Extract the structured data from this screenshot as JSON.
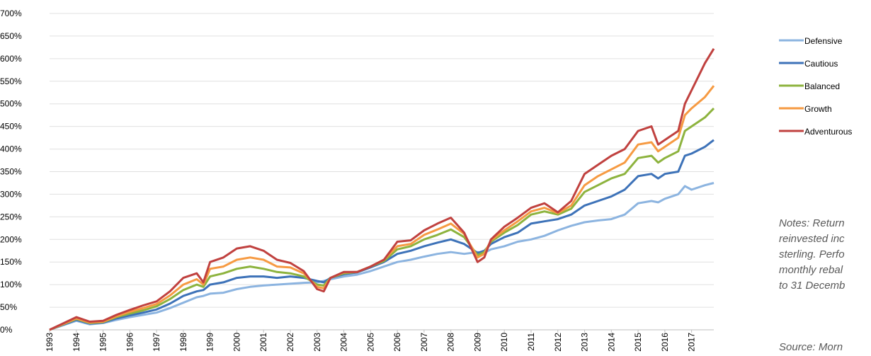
{
  "chart_data": {
    "type": "line",
    "x": [
      1993,
      1994,
      1994.5,
      1995,
      1995.5,
      1996,
      1996.5,
      1997,
      1997.5,
      1998,
      1998.5,
      1998.75,
      1999,
      1999.5,
      2000,
      2000.5,
      2001,
      2001.5,
      2002,
      2002.5,
      2003,
      2003.25,
      2003.5,
      2004,
      2004.5,
      2005,
      2005.5,
      2006,
      2006.5,
      2007,
      2007.5,
      2008,
      2008.5,
      2009,
      2009.25,
      2009.5,
      2010,
      2010.5,
      2011,
      2011.5,
      2012,
      2012.5,
      2013,
      2013.5,
      2014,
      2014.5,
      2015,
      2015.5,
      2015.75,
      2016,
      2016.5,
      2016.75,
      2017,
      2017.5,
      2017.83
    ],
    "series": [
      {
        "name": "Defensive",
        "color": "#8cb4e0",
        "values": [
          0,
          20,
          12,
          15,
          22,
          28,
          33,
          38,
          48,
          60,
          72,
          75,
          80,
          82,
          90,
          95,
          98,
          100,
          102,
          104,
          105,
          108,
          112,
          118,
          122,
          130,
          140,
          150,
          155,
          162,
          168,
          172,
          168,
          172,
          170,
          178,
          185,
          195,
          200,
          208,
          220,
          230,
          238,
          242,
          245,
          255,
          280,
          285,
          282,
          290,
          300,
          318,
          310,
          320,
          325
        ]
      },
      {
        "name": "Cautious",
        "color": "#3d72b8",
        "values": [
          0,
          22,
          14,
          16,
          25,
          32,
          38,
          45,
          58,
          75,
          85,
          88,
          100,
          105,
          115,
          118,
          118,
          115,
          118,
          115,
          108,
          105,
          115,
          123,
          127,
          138,
          150,
          168,
          175,
          185,
          193,
          200,
          190,
          170,
          175,
          190,
          205,
          215,
          235,
          240,
          245,
          255,
          275,
          285,
          295,
          310,
          340,
          345,
          335,
          345,
          350,
          385,
          390,
          405,
          420
        ]
      },
      {
        "name": "Balanced",
        "color": "#8db33e",
        "values": [
          0,
          24,
          15,
          17,
          28,
          36,
          43,
          52,
          68,
          88,
          100,
          95,
          118,
          125,
          135,
          140,
          135,
          128,
          125,
          118,
          100,
          98,
          115,
          125,
          128,
          140,
          152,
          178,
          185,
          200,
          210,
          222,
          205,
          165,
          172,
          195,
          215,
          232,
          255,
          262,
          255,
          268,
          305,
          320,
          335,
          345,
          380,
          385,
          370,
          380,
          395,
          440,
          450,
          470,
          490
        ]
      },
      {
        "name": "Growth",
        "color": "#f69a42",
        "values": [
          0,
          25,
          16,
          18,
          30,
          40,
          48,
          57,
          76,
          100,
          112,
          100,
          135,
          140,
          155,
          160,
          155,
          140,
          138,
          125,
          95,
          92,
          115,
          127,
          128,
          140,
          155,
          185,
          190,
          210,
          222,
          235,
          212,
          160,
          168,
          198,
          220,
          240,
          262,
          270,
          258,
          275,
          320,
          340,
          355,
          370,
          410,
          415,
          395,
          405,
          425,
          475,
          490,
          515,
          540
        ]
      },
      {
        "name": "Adventurous",
        "color": "#c0413f",
        "values": [
          0,
          28,
          18,
          20,
          33,
          44,
          54,
          63,
          85,
          115,
          125,
          105,
          150,
          160,
          180,
          185,
          175,
          155,
          148,
          130,
          90,
          85,
          115,
          128,
          128,
          140,
          155,
          195,
          198,
          220,
          235,
          248,
          215,
          150,
          160,
          200,
          228,
          248,
          270,
          280,
          260,
          285,
          345,
          365,
          385,
          400,
          440,
          450,
          410,
          420,
          440,
          500,
          530,
          590,
          622
        ]
      }
    ],
    "xlim": [
      1993,
      2017.83
    ],
    "xticks": [
      1993,
      1994,
      1995,
      1996,
      1997,
      1998,
      1999,
      2000,
      2001,
      2002,
      2003,
      2004,
      2005,
      2006,
      2007,
      2008,
      2009,
      2010,
      2011,
      2012,
      2013,
      2014,
      2015,
      2016,
      2017
    ],
    "ylim": [
      0,
      700
    ],
    "yticks": [
      {
        "value": 0,
        "label": "0%"
      },
      {
        "value": 50,
        "label": "50%"
      },
      {
        "value": 100,
        "label": "100%"
      },
      {
        "value": 150,
        "label": "150%"
      },
      {
        "value": 200,
        "label": "200%"
      },
      {
        "value": 250,
        "label": "250%"
      },
      {
        "value": 300,
        "label": "300%"
      },
      {
        "value": 350,
        "label": "350%"
      },
      {
        "value": 400,
        "label": "400%"
      },
      {
        "value": 450,
        "label": "450%"
      },
      {
        "value": 500,
        "label": "500%"
      },
      {
        "value": 550,
        "label": "550%"
      },
      {
        "value": 600,
        "label": "600%"
      },
      {
        "value": 650,
        "label": "650%"
      },
      {
        "value": 700,
        "label": "700%"
      }
    ],
    "grid": true,
    "legend": "right",
    "notes": [
      "Notes: Return",
      "reinvested inc",
      "sterling. Perfo",
      "monthly rebal",
      "to 31 Decemb"
    ],
    "source": "Source: Morn"
  }
}
